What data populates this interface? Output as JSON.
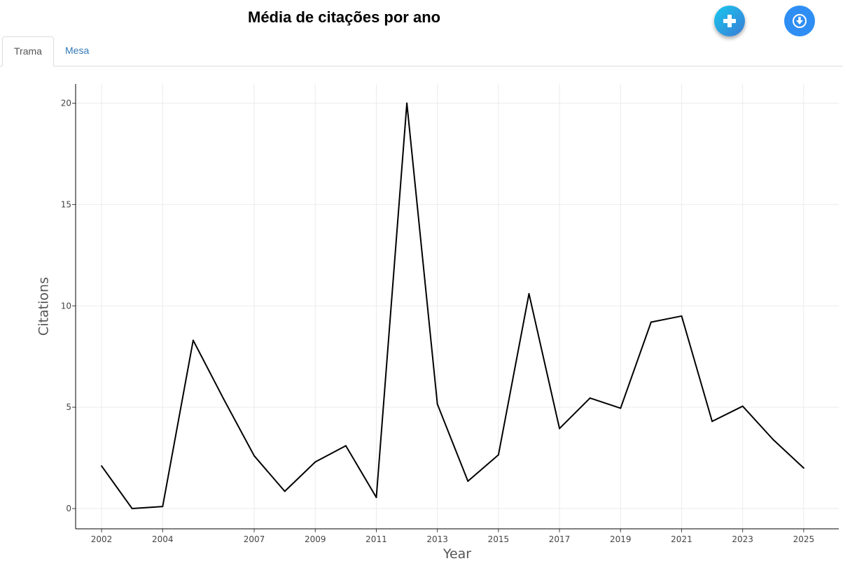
{
  "page": {
    "title": "Média de citações por ano"
  },
  "toolbar": {
    "add_icon": "plus-icon",
    "download_icon": "download-circle-icon",
    "accent_add": "#18c8ee",
    "accent_download": "#2f8ef4"
  },
  "tabs": [
    {
      "label": "Trama",
      "active": true
    },
    {
      "label": "Mesa",
      "active": false
    }
  ],
  "chart_data": {
    "type": "line",
    "xlabel": "Year",
    "ylabel": "Citations",
    "x": [
      2002,
      2003,
      2004,
      2005,
      2006,
      2007,
      2008,
      2009,
      2010,
      2011,
      2012,
      2013,
      2014,
      2015,
      2016,
      2017,
      2018,
      2019,
      2020,
      2021,
      2022,
      2023,
      2024,
      2025
    ],
    "series": [
      {
        "values": [
          2.1,
          0.0,
          0.1,
          8.3,
          5.4,
          2.6,
          0.85,
          2.3,
          3.1,
          0.55,
          20.0,
          5.15,
          1.35,
          2.65,
          10.6,
          3.95,
          5.45,
          4.95,
          9.2,
          9.5,
          4.3,
          5.05,
          3.4,
          2.0
        ],
        "color": "#000000"
      }
    ],
    "x_ticks": [
      "2002",
      "2004",
      "2007",
      "2009",
      "2011",
      "2013",
      "2015",
      "2017",
      "2019",
      "2021",
      "2023",
      "2025"
    ],
    "y_ticks": [
      "0",
      "5",
      "10",
      "15",
      "20"
    ],
    "xlim": [
      2001.15,
      2026.15
    ],
    "ylim": [
      -1.0,
      20.95
    ],
    "grid": true,
    "legend": "none"
  }
}
